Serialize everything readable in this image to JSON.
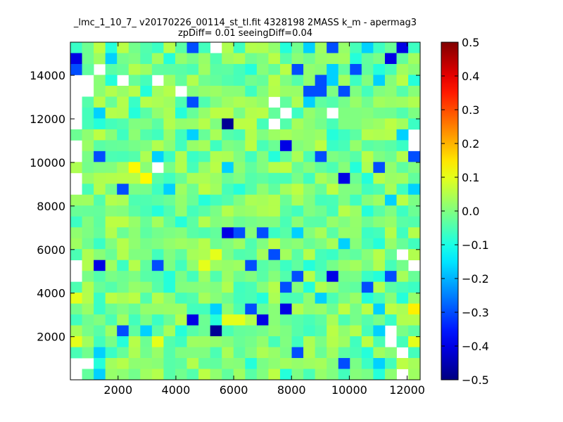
{
  "chart_data": {
    "type": "heatmap",
    "title": "_lmc_1_10_7_ v20170226_00114_st_tl.fit 4328198 2MASS k_m - apermag3",
    "subtitle": "zpDiff= 0.01 seeingDiff=0.04",
    "xlabel": "",
    "ylabel": "",
    "xlim": [
      350,
      12450
    ],
    "ylim": [
      20,
      15520
    ],
    "x_ticks": [
      2000,
      4000,
      6000,
      8000,
      10000,
      12000
    ],
    "y_ticks": [
      2000,
      4000,
      6000,
      8000,
      10000,
      12000,
      14000
    ],
    "x_tick_labels": [
      "2000",
      "4000",
      "6000",
      "8000",
      "10000",
      "12000"
    ],
    "y_tick_labels": [
      "2000",
      "4000",
      "6000",
      "8000",
      "10000",
      "12000",
      "14000"
    ],
    "grid": false,
    "colormap": "jet",
    "colorbar": {
      "range": [
        -0.5,
        0.5
      ],
      "ticks": [
        0.5,
        0.4,
        0.3,
        0.2,
        0.1,
        0.0,
        -0.1,
        -0.2,
        -0.3,
        -0.4,
        -0.5
      ],
      "tick_labels": [
        "0.5",
        "0.4",
        "0.3",
        "0.2",
        "0.1",
        "0.0",
        "−0.1",
        "−0.2",
        "−0.3",
        "−0.4",
        "−0.5"
      ]
    },
    "grid_cells": {
      "x_edges_start": 350,
      "x_bin_width": 403,
      "n_cols": 30,
      "y_edges_start": 20,
      "y_bin_width": 500,
      "n_rows": 31,
      "rows_top_to_bottom": [
        "...4......2....6..4.3.2..3..1.",
        "1..3.5..4...............4..1..",
        "2....6.........4...2..3.2.4...",
        "...4.................23...3..4",
        "......4..........6..22.2..5...",
        "..........2.........3.........",
        "..3..4...4.....6........5.....",
        "..4..5.......0.........55.....",
        "..........3.....5.....4.....3.",
        "..................1...........",
        "..2....3......5..4...2.......2",
        "..5..8.......3..5.......4.2..5",
        "...6..8.......5........1.4....",
        "..6.2...3.....4........5.....3",
        "...6.......4.....6..5......3..",
        ".......4.....6...6..5....4.5..",
        ".........4......55.....5......",
        ".............12.2..3.......6..",
        "...5............5......3..4...",
        "......5.5...7....2............",
        "..1....2...7...2....4.........",
        "........4..........2..1...42..",
        "........4...5.....2.4....2....",
        "7...............4....3...4..4.",
        "....5.......3..2..1.......3..9",
        ".........61.477.1.............",
        "....2.3..4..0...........6.3...",
        "7...4..7..........5...6......7",
        "..3.......55...5...2.....4....",
        "..4............4.......2..3...",
        "..3...............4...5...4..."
      ]
    }
  }
}
